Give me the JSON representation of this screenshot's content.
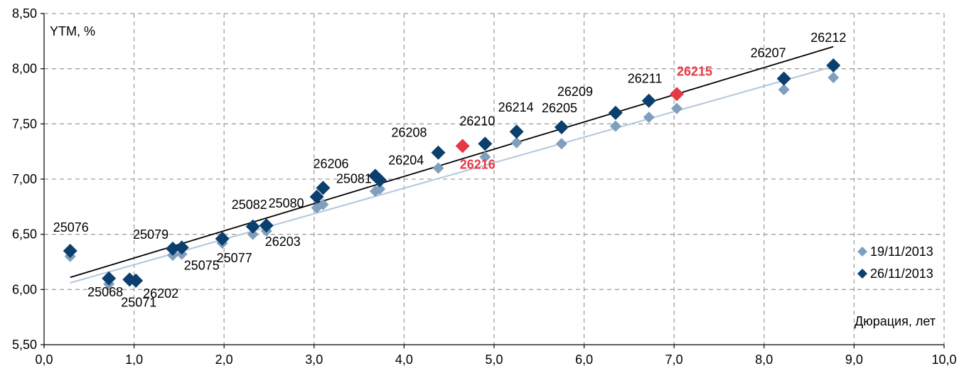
{
  "chart_data": {
    "type": "scatter",
    "xlabel": "Дюрация, лет",
    "ylabel": "YTM, %",
    "xlim": [
      0,
      10
    ],
    "ylim": [
      5.5,
      8.5
    ],
    "x_ticks": [
      "0,0",
      "1,0",
      "2,0",
      "3,0",
      "4,0",
      "5,0",
      "6,0",
      "7,0",
      "8,0",
      "9,0",
      "10,0"
    ],
    "y_ticks": [
      "5,50",
      "6,00",
      "6,50",
      "7,00",
      "7,50",
      "8,00",
      "8,50"
    ],
    "grid": true,
    "legend_position": "right",
    "colors": {
      "series_old": "#7f9fbd",
      "series_new": "#0b3f6e",
      "highlight": "#e63946",
      "trend_old": "#b3c7dd",
      "trend_new": "#000000",
      "grid": "#a0a0a0"
    },
    "series": [
      {
        "name": "19/11/2013",
        "points": [
          {
            "x": 0.29,
            "y": 6.3
          },
          {
            "x": 0.72,
            "y": 6.05
          },
          {
            "x": 0.95,
            "y": 6.09
          },
          {
            "x": 1.02,
            "y": 6.09
          },
          {
            "x": 1.43,
            "y": 6.31
          },
          {
            "x": 1.53,
            "y": 6.32
          },
          {
            "x": 1.98,
            "y": 6.42
          },
          {
            "x": 2.32,
            "y": 6.5
          },
          {
            "x": 2.47,
            "y": 6.53
          },
          {
            "x": 3.03,
            "y": 6.74
          },
          {
            "x": 3.1,
            "y": 6.77
          },
          {
            "x": 3.68,
            "y": 6.89
          },
          {
            "x": 3.73,
            "y": 6.91
          },
          {
            "x": 4.38,
            "y": 7.1
          },
          {
            "x": 4.9,
            "y": 7.2
          },
          {
            "x": 5.25,
            "y": 7.33
          },
          {
            "x": 5.75,
            "y": 7.32
          },
          {
            "x": 6.35,
            "y": 7.48
          },
          {
            "x": 6.72,
            "y": 7.56
          },
          {
            "x": 7.03,
            "y": 7.64
          },
          {
            "x": 8.22,
            "y": 7.81
          },
          {
            "x": 8.77,
            "y": 7.92
          }
        ]
      },
      {
        "name": "26/11/2013",
        "points": [
          {
            "x": 0.29,
            "y": 6.35,
            "label": "25076"
          },
          {
            "x": 0.72,
            "y": 6.1,
            "label": "25068"
          },
          {
            "x": 0.95,
            "y": 6.09,
            "label": "25071"
          },
          {
            "x": 1.02,
            "y": 6.08,
            "label": "26202"
          },
          {
            "x": 1.43,
            "y": 6.37,
            "label": "25079"
          },
          {
            "x": 1.53,
            "y": 6.38,
            "label": "25075"
          },
          {
            "x": 1.98,
            "y": 6.46,
            "label": "25077"
          },
          {
            "x": 2.32,
            "y": 6.57,
            "label": "25082"
          },
          {
            "x": 2.47,
            "y": 6.58,
            "label": "26203"
          },
          {
            "x": 3.03,
            "y": 6.84,
            "label": "25080"
          },
          {
            "x": 3.1,
            "y": 6.92,
            "label": "26206"
          },
          {
            "x": 3.68,
            "y": 7.03,
            "label": "25081"
          },
          {
            "x": 3.73,
            "y": 6.99,
            "label": "26204"
          },
          {
            "x": 4.38,
            "y": 7.24,
            "label": "26208"
          },
          {
            "x": 4.9,
            "y": 7.32,
            "label": "26210"
          },
          {
            "x": 5.25,
            "y": 7.43,
            "label": "26214"
          },
          {
            "x": 5.75,
            "y": 7.47,
            "label": "26205"
          },
          {
            "x": 6.35,
            "y": 7.6,
            "label": "26209"
          },
          {
            "x": 6.72,
            "y": 7.71,
            "label": "26211"
          },
          {
            "x": 8.22,
            "y": 7.91,
            "label": "26207"
          },
          {
            "x": 8.77,
            "y": 8.03,
            "label": "26212"
          }
        ]
      }
    ],
    "highlighted": [
      {
        "x": 4.65,
        "y": 7.3,
        "label": "26216"
      },
      {
        "x": 7.03,
        "y": 7.77,
        "label": "26215"
      }
    ],
    "trendlines": [
      {
        "series": "19/11/2013",
        "x": [
          0.29,
          8.77
        ],
        "y": [
          6.06,
          8.02
        ]
      },
      {
        "series": "26/11/2013",
        "x": [
          0.29,
          8.77
        ],
        "y": [
          6.11,
          8.2
        ]
      }
    ]
  }
}
